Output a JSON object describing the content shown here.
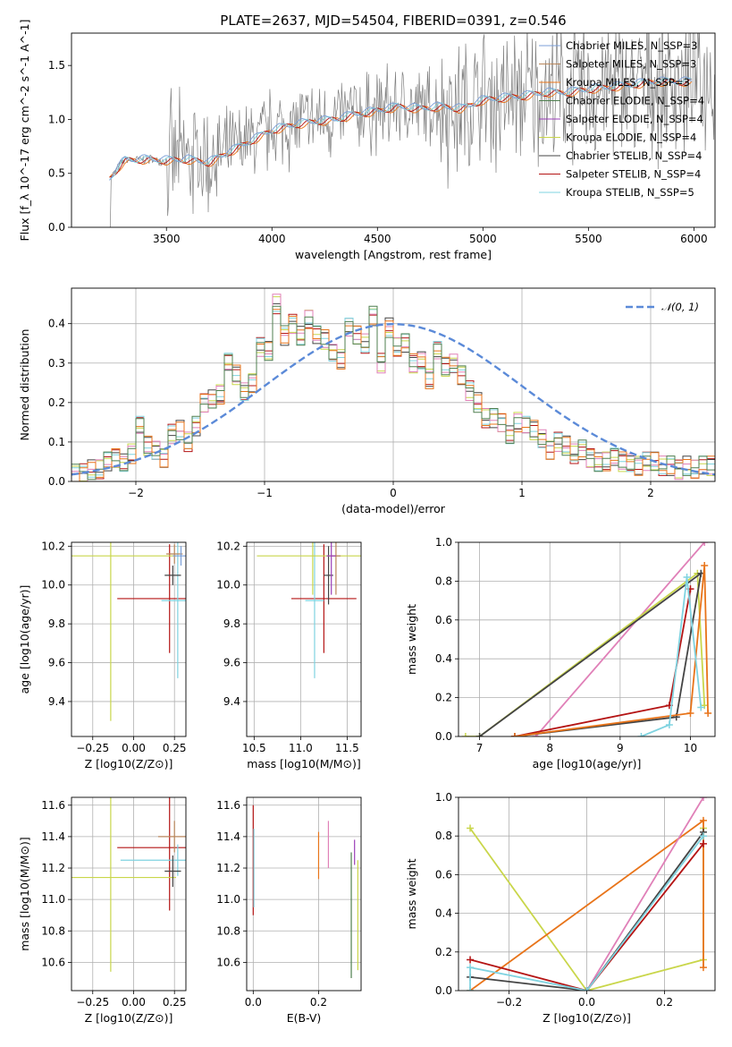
{
  "figure_title": "PLATE=2637, MJD=54504, FIBERID=0391, z=0.546",
  "colors": {
    "Chabrier MILES": "#7b9fd8",
    "Salpeter MILES": "#b8865b",
    "Kroupa MILES": "#e8741a",
    "Chabrier ELODIE": "#4f7f4f",
    "Salpeter ELODIE": "#9b3fb8",
    "Kroupa ELODIE": "#c9d64a",
    "Chabrier STELIB": "#444444",
    "Salpeter STELIB": "#b41414",
    "Kroupa STELIB": "#7fd3e0",
    "pink": "#e080b8",
    "gauss": "#5b8ad8",
    "data": "#808080"
  },
  "chart_data": [
    {
      "id": "spectrum",
      "type": "line",
      "xlabel": "wavelength [Angstrom, rest frame]",
      "ylabel": "Flux [f_λ 10^-17 erg cm^-2 s^-1 A^-1]",
      "xlim": [
        3050,
        6100
      ],
      "ylim": [
        0,
        1.8
      ],
      "xticks": [
        3500,
        4000,
        4500,
        5000,
        5500,
        6000
      ],
      "yticks": [
        0.0,
        0.5,
        1.0,
        1.5
      ],
      "grid": false,
      "legend_position": "top-right",
      "legend": [
        "Chabrier MILES, N_SSP=3",
        "Salpeter MILES, N_SSP=3",
        "Kroupa MILES, N_SSP=3",
        "Chabrier ELODIE, N_SSP=4",
        "Salpeter ELODIE, N_SSP=4",
        "Kroupa ELODIE, N_SSP=4",
        "Chabrier STELIB, N_SSP=4",
        "Salpeter STELIB, N_SSP=4",
        "Kroupa STELIB, N_SSP=5"
      ],
      "model_continuum": {
        "x": [
          3230,
          3300,
          3400,
          3500,
          3600,
          3700,
          3800,
          3900,
          4000,
          4100,
          4200,
          4300,
          4400,
          4500,
          4600,
          4700,
          4800,
          4900,
          5000,
          5100,
          5200,
          5300,
          5400,
          5500,
          5600,
          5700,
          5800,
          5900
        ],
        "y": [
          0.45,
          0.62,
          0.63,
          0.62,
          0.63,
          0.6,
          0.7,
          0.8,
          0.9,
          0.95,
          0.98,
          1.0,
          1.05,
          1.08,
          1.12,
          1.1,
          1.12,
          1.1,
          1.18,
          1.2,
          1.22,
          1.25,
          1.25,
          1.28,
          1.3,
          1.32,
          1.35,
          1.35
        ]
      }
    },
    {
      "id": "residuals",
      "type": "line",
      "xlabel": "(data-model)/error",
      "ylabel": "Normed distribution",
      "xlim": [
        -2.5,
        2.5
      ],
      "ylim": [
        0,
        0.49
      ],
      "xticks": [
        -2,
        -1,
        0,
        1,
        2
      ],
      "yticks": [
        0.0,
        0.1,
        0.2,
        0.3,
        0.4
      ],
      "grid": true,
      "legend_position": "top-right",
      "legend": [
        "𝒩(0, 1)"
      ],
      "bin_width": 0.1,
      "bin_start": -2.5,
      "histogram": [
        0.02,
        0.02,
        0.03,
        0.03,
        0.05,
        0.06,
        0.05,
        0.07,
        0.14,
        0.09,
        0.08,
        0.06,
        0.12,
        0.13,
        0.1,
        0.14,
        0.2,
        0.21,
        0.22,
        0.3,
        0.27,
        0.23,
        0.25,
        0.34,
        0.33,
        0.45,
        0.37,
        0.4,
        0.37,
        0.41,
        0.37,
        0.36,
        0.33,
        0.31,
        0.39,
        0.37,
        0.35,
        0.42,
        0.3,
        0.39,
        0.34,
        0.35,
        0.3,
        0.31,
        0.26,
        0.33,
        0.29,
        0.3,
        0.27,
        0.23,
        0.2,
        0.16,
        0.16,
        0.15,
        0.12,
        0.15,
        0.14,
        0.13,
        0.11,
        0.08,
        0.1,
        0.09,
        0.07,
        0.08,
        0.06,
        0.05,
        0.05,
        0.06,
        0.05,
        0.05,
        0.04,
        0.05,
        0.05,
        0.04,
        0.04,
        0.03,
        0.04,
        0.03,
        0.04,
        0.04,
        0.03
      ],
      "gaussian": "N(0,1)"
    },
    {
      "id": "age-vs-Z",
      "type": "scatter",
      "xlabel": "Z [log10(Z/Z⊙)]",
      "ylabel": "age [log10(age/yr)]",
      "xlim": [
        -0.38,
        0.32
      ],
      "ylim": [
        9.22,
        10.22
      ],
      "xticks": [
        -0.25,
        0.0,
        0.25
      ],
      "yticks": [
        9.4,
        9.6,
        9.8,
        10.0,
        10.2
      ],
      "grid": true,
      "points": [
        {
          "x": 0.22,
          "y": 9.93,
          "xerr": 0.32,
          "yerr": 0.28,
          "model": "Salpeter STELIB"
        },
        {
          "x": 0.27,
          "y": 9.92,
          "xerr": 0.1,
          "yerr": 0.4,
          "model": "Kroupa STELIB"
        },
        {
          "x": 0.24,
          "y": 10.05,
          "xerr": 0.05,
          "yerr": 0.05,
          "model": "Chabrier STELIB"
        },
        {
          "x": -0.14,
          "y": 10.15,
          "xerr": 0.4,
          "yerr": 0.85,
          "model": "Kroupa ELODIE"
        },
        {
          "x": 0.25,
          "y": 10.16,
          "xerr": 0.05,
          "yerr": 0.05,
          "model": "Salpeter MILES"
        },
        {
          "x": 0.29,
          "y": 10.15,
          "xerr": 0.05,
          "yerr": 0.05,
          "model": "Chabrier MILES"
        }
      ]
    },
    {
      "id": "age-vs-mass",
      "type": "scatter",
      "xlabel": "mass [log10(M/M⊙)]",
      "ylabel": "",
      "xlim": [
        10.42,
        11.65
      ],
      "ylim": [
        9.22,
        10.22
      ],
      "xticks": [
        10.5,
        11.0,
        11.5
      ],
      "yticks": [
        9.4,
        9.6,
        9.8,
        10.0,
        10.2
      ],
      "grid": true,
      "points": [
        {
          "x": 11.25,
          "y": 9.93,
          "xerr": 0.35,
          "yerr": 0.28,
          "model": "Salpeter STELIB"
        },
        {
          "x": 11.15,
          "y": 9.92,
          "xerr": 0.1,
          "yerr": 0.4,
          "model": "Kroupa STELIB"
        },
        {
          "x": 11.3,
          "y": 10.05,
          "xerr": 0.05,
          "yerr": 0.15,
          "model": "Chabrier STELIB"
        },
        {
          "x": 11.13,
          "y": 10.15,
          "xerr": 0.6,
          "yerr": 0.2,
          "model": "Kroupa ELODIE"
        },
        {
          "x": 11.38,
          "y": 10.15,
          "xerr": 0.05,
          "yerr": 0.2,
          "model": "Salpeter MILES"
        },
        {
          "x": 11.33,
          "y": 10.15,
          "xerr": 0.05,
          "yerr": 0.2,
          "model": "Salpeter ELODIE"
        }
      ]
    },
    {
      "id": "weight-vs-age",
      "type": "line",
      "xlabel": "age [log10(age/yr)]",
      "ylabel": "mass weight",
      "xlim": [
        6.7,
        10.35
      ],
      "ylim": [
        0,
        1.0
      ],
      "xticks": [
        7,
        8,
        9,
        10
      ],
      "yticks": [
        0.0,
        0.2,
        0.4,
        0.6,
        0.8,
        1.0
      ],
      "grid": true,
      "series": [
        {
          "model": "pink",
          "x": [
            7.8,
            10.2
          ],
          "y": [
            0.0,
            1.0
          ]
        },
        {
          "model": "Kroupa ELODIE",
          "x": [
            6.8,
            7.0,
            10.1,
            10.2
          ],
          "y": [
            0.0,
            0.0,
            0.84,
            0.16
          ]
        },
        {
          "model": "Chabrier STELIB",
          "x": [
            7.0,
            10.15,
            9.8,
            7.5
          ],
          "y": [
            0.0,
            0.84,
            0.1,
            0.0
          ]
        },
        {
          "model": "Salpeter STELIB",
          "x": [
            7.5,
            9.7,
            10.0
          ],
          "y": [
            0.0,
            0.16,
            0.76
          ]
        },
        {
          "model": "Kroupa MILES",
          "x": [
            7.5,
            10.0,
            10.2,
            10.25
          ],
          "y": [
            0.0,
            0.12,
            0.88,
            0.12
          ]
        },
        {
          "model": "Kroupa STELIB",
          "x": [
            9.3,
            9.7,
            9.95,
            10.15
          ],
          "y": [
            0.0,
            0.06,
            0.82,
            0.15
          ]
        }
      ]
    },
    {
      "id": "mass-vs-Z",
      "type": "scatter",
      "xlabel": "Z [log10(Z/Z⊙)]",
      "ylabel": "mass [log10(M/M⊙)]",
      "xlim": [
        -0.38,
        0.32
      ],
      "ylim": [
        10.42,
        11.65
      ],
      "xticks": [
        -0.25,
        0.0,
        0.25
      ],
      "yticks": [
        10.6,
        10.8,
        11.0,
        11.2,
        11.4,
        11.6
      ],
      "grid": true,
      "points": [
        {
          "x": 0.22,
          "y": 11.33,
          "xerr": 0.32,
          "yerr": 0.4,
          "model": "Salpeter STELIB"
        },
        {
          "x": 0.27,
          "y": 11.25,
          "xerr": 0.35,
          "yerr": 0.1,
          "model": "Kroupa STELIB"
        },
        {
          "x": -0.14,
          "y": 11.14,
          "xerr": 0.4,
          "yerr": 0.6,
          "model": "Kroupa ELODIE"
        },
        {
          "x": 0.25,
          "y": 11.4,
          "xerr": 0.1,
          "yerr": 0.1,
          "model": "Salpeter MILES"
        },
        {
          "x": 0.24,
          "y": 11.18,
          "xerr": 0.05,
          "yerr": 0.1,
          "model": "Chabrier STELIB"
        }
      ]
    },
    {
      "id": "mass-vs-EBV",
      "type": "scatter",
      "xlabel": "E(B-V)",
      "ylabel": "",
      "xlim": [
        -0.02,
        0.33
      ],
      "ylim": [
        10.42,
        11.65
      ],
      "xticks": [
        0.0,
        0.2
      ],
      "yticks": [
        10.6,
        10.8,
        11.0,
        11.2,
        11.4,
        11.6
      ],
      "grid": true,
      "points": [
        {
          "x": 0.0,
          "y": 11.25,
          "yerr": 0.35,
          "model": "Salpeter STELIB"
        },
        {
          "x": 0.002,
          "y": 11.2,
          "yerr": 0.25,
          "model": "Kroupa STELIB"
        },
        {
          "x": 0.2,
          "y": 11.28,
          "yerr": 0.15,
          "model": "Kroupa MILES"
        },
        {
          "x": 0.23,
          "y": 11.35,
          "yerr": 0.15,
          "model": "pink"
        },
        {
          "x": 0.3,
          "y": 10.9,
          "yerr": 0.4,
          "model": "Chabrier ELODIE"
        },
        {
          "x": 0.31,
          "y": 11.3,
          "yerr": 0.08,
          "model": "Salpeter ELODIE"
        },
        {
          "x": 0.32,
          "y": 10.9,
          "yerr": 0.35,
          "model": "Kroupa ELODIE"
        }
      ]
    },
    {
      "id": "weight-vs-Z",
      "type": "line",
      "xlabel": "Z [log10(Z/Z⊙)]",
      "ylabel": "mass weight",
      "xlim": [
        -0.33,
        0.33
      ],
      "ylim": [
        0,
        1.0
      ],
      "xticks": [
        -0.2,
        0.0,
        0.2
      ],
      "yticks": [
        0.0,
        0.2,
        0.4,
        0.6,
        0.8,
        1.0
      ],
      "grid": true,
      "series": [
        {
          "model": "Kroupa ELODIE",
          "x": [
            -0.3,
            0.0,
            0.3,
            0.3
          ],
          "y": [
            0.84,
            0.0,
            0.16,
            0.84
          ]
        },
        {
          "model": "Kroupa MILES",
          "x": [
            -0.3,
            0.3,
            0.3
          ],
          "y": [
            0.0,
            0.88,
            0.12
          ]
        },
        {
          "model": "pink",
          "x": [
            0.0,
            0.3
          ],
          "y": [
            0.0,
            1.0
          ]
        },
        {
          "model": "Salpeter STELIB",
          "x": [
            -0.3,
            0.0,
            0.3
          ],
          "y": [
            0.16,
            0.0,
            0.76
          ]
        },
        {
          "model": "Chabrier STELIB",
          "x": [
            -0.3,
            0.0,
            0.3
          ],
          "y": [
            0.07,
            0.0,
            0.82
          ]
        },
        {
          "model": "Kroupa STELIB",
          "x": [
            -0.3,
            -0.3,
            0.0,
            0.3
          ],
          "y": [
            0.0,
            0.12,
            0.0,
            0.8
          ]
        }
      ]
    }
  ]
}
